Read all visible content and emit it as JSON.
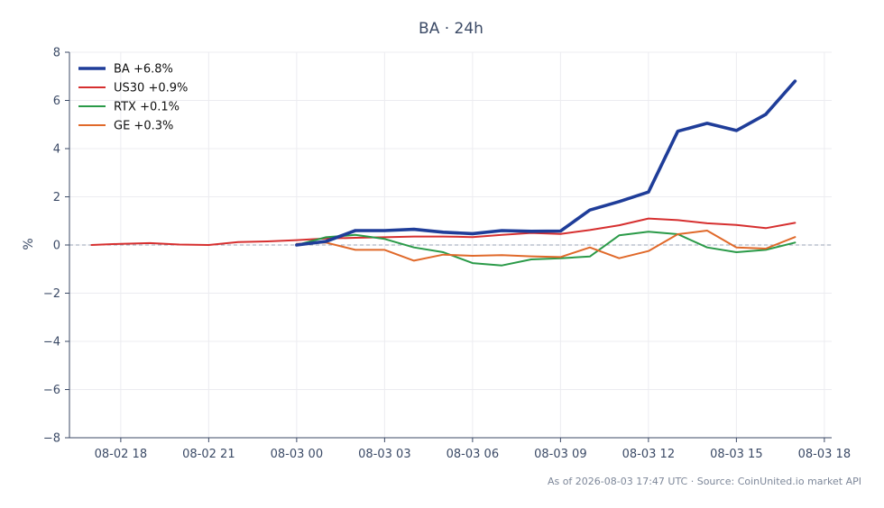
{
  "chart_data": {
    "type": "line",
    "title": "BA · 24h",
    "ylabel": "%",
    "xlabel": "",
    "ylim": [
      -8,
      8
    ],
    "yticks": [
      -8,
      -6,
      -4,
      -2,
      0,
      2,
      4,
      6,
      8
    ],
    "xlim": [
      "2026-08-02T16:15",
      "2026-08-03T18:15"
    ],
    "xticks": [
      {
        "t": "2026-08-02T18:00",
        "label": "08-02 18"
      },
      {
        "t": "2026-08-02T21:00",
        "label": "08-02 21"
      },
      {
        "t": "2026-08-03T00:00",
        "label": "08-03 00"
      },
      {
        "t": "2026-08-03T03:00",
        "label": "08-03 03"
      },
      {
        "t": "2026-08-03T06:00",
        "label": "08-03 06"
      },
      {
        "t": "2026-08-03T09:00",
        "label": "08-03 09"
      },
      {
        "t": "2026-08-03T12:00",
        "label": "08-03 12"
      },
      {
        "t": "2026-08-03T15:00",
        "label": "08-03 15"
      },
      {
        "t": "2026-08-03T18:00",
        "label": "08-03 18"
      }
    ],
    "grid": true,
    "zero_line": {
      "style": "dashed",
      "color": "#9aa3b5"
    },
    "legend_position": "top-left",
    "series": [
      {
        "name": "BA +6.8%",
        "color": "#1f3d99",
        "emphasis": true,
        "x": [
          "2026-08-03T00:00",
          "2026-08-03T01:00",
          "2026-08-03T02:00",
          "2026-08-03T03:00",
          "2026-08-03T04:00",
          "2026-08-03T05:00",
          "2026-08-03T06:00",
          "2026-08-03T07:00",
          "2026-08-03T08:00",
          "2026-08-03T09:00",
          "2026-08-03T10:00",
          "2026-08-03T11:00",
          "2026-08-03T12:00",
          "2026-08-03T13:00",
          "2026-08-03T14:00",
          "2026-08-03T15:00",
          "2026-08-03T16:00",
          "2026-08-03T17:00"
        ],
        "values": [
          0.0,
          0.15,
          0.6,
          0.6,
          0.65,
          0.53,
          0.47,
          0.6,
          0.57,
          0.58,
          1.45,
          1.8,
          2.2,
          4.72,
          5.05,
          4.75,
          5.42,
          6.8
        ]
      },
      {
        "name": "US30 +0.9%",
        "color": "#d62f2f",
        "x": [
          "2026-08-02T17:00",
          "2026-08-02T18:00",
          "2026-08-02T19:00",
          "2026-08-02T20:00",
          "2026-08-02T21:00",
          "2026-08-02T22:00",
          "2026-08-02T23:00",
          "2026-08-03T00:00",
          "2026-08-03T01:00",
          "2026-08-03T02:00",
          "2026-08-03T03:00",
          "2026-08-03T04:00",
          "2026-08-03T05:00",
          "2026-08-03T06:00",
          "2026-08-03T07:00",
          "2026-08-03T08:00",
          "2026-08-03T09:00",
          "2026-08-03T10:00",
          "2026-08-03T11:00",
          "2026-08-03T12:00",
          "2026-08-03T13:00",
          "2026-08-03T14:00",
          "2026-08-03T15:00",
          "2026-08-03T16:00",
          "2026-08-03T17:00"
        ],
        "values": [
          0.0,
          0.05,
          0.08,
          0.02,
          0.0,
          0.12,
          0.15,
          0.2,
          0.27,
          0.3,
          0.32,
          0.35,
          0.35,
          0.33,
          0.42,
          0.5,
          0.46,
          0.62,
          0.82,
          1.1,
          1.03,
          0.9,
          0.83,
          0.7,
          0.92
        ]
      },
      {
        "name": "RTX +0.1%",
        "color": "#2a9a48",
        "x": [
          "2026-08-03T00:00",
          "2026-08-03T01:00",
          "2026-08-03T02:00",
          "2026-08-03T03:00",
          "2026-08-03T04:00",
          "2026-08-03T05:00",
          "2026-08-03T06:00",
          "2026-08-03T07:00",
          "2026-08-03T08:00",
          "2026-08-03T09:00",
          "2026-08-03T10:00",
          "2026-08-03T11:00",
          "2026-08-03T12:00",
          "2026-08-03T13:00",
          "2026-08-03T14:00",
          "2026-08-03T15:00",
          "2026-08-03T16:00",
          "2026-08-03T17:00"
        ],
        "values": [
          0.0,
          0.32,
          0.42,
          0.25,
          -0.1,
          -0.3,
          -0.75,
          -0.85,
          -0.6,
          -0.55,
          -0.48,
          0.4,
          0.55,
          0.45,
          -0.1,
          -0.3,
          -0.2,
          0.1
        ]
      },
      {
        "name": "GE +0.3%",
        "color": "#e0692a",
        "x": [
          "2026-08-03T00:00",
          "2026-08-03T01:00",
          "2026-08-03T02:00",
          "2026-08-03T03:00",
          "2026-08-03T04:00",
          "2026-08-03T05:00",
          "2026-08-03T06:00",
          "2026-08-03T07:00",
          "2026-08-03T08:00",
          "2026-08-03T09:00",
          "2026-08-03T10:00",
          "2026-08-03T11:00",
          "2026-08-03T12:00",
          "2026-08-03T13:00",
          "2026-08-03T14:00",
          "2026-08-03T15:00",
          "2026-08-03T16:00",
          "2026-08-03T17:00"
        ],
        "values": [
          0.05,
          0.1,
          -0.2,
          -0.2,
          -0.65,
          -0.4,
          -0.45,
          -0.42,
          -0.47,
          -0.5,
          -0.1,
          -0.55,
          -0.25,
          0.45,
          0.6,
          -0.1,
          -0.15,
          0.33
        ]
      }
    ],
    "footer": "As of 2026-08-03 17:47 UTC · Source: CoinUnited.io market API"
  }
}
